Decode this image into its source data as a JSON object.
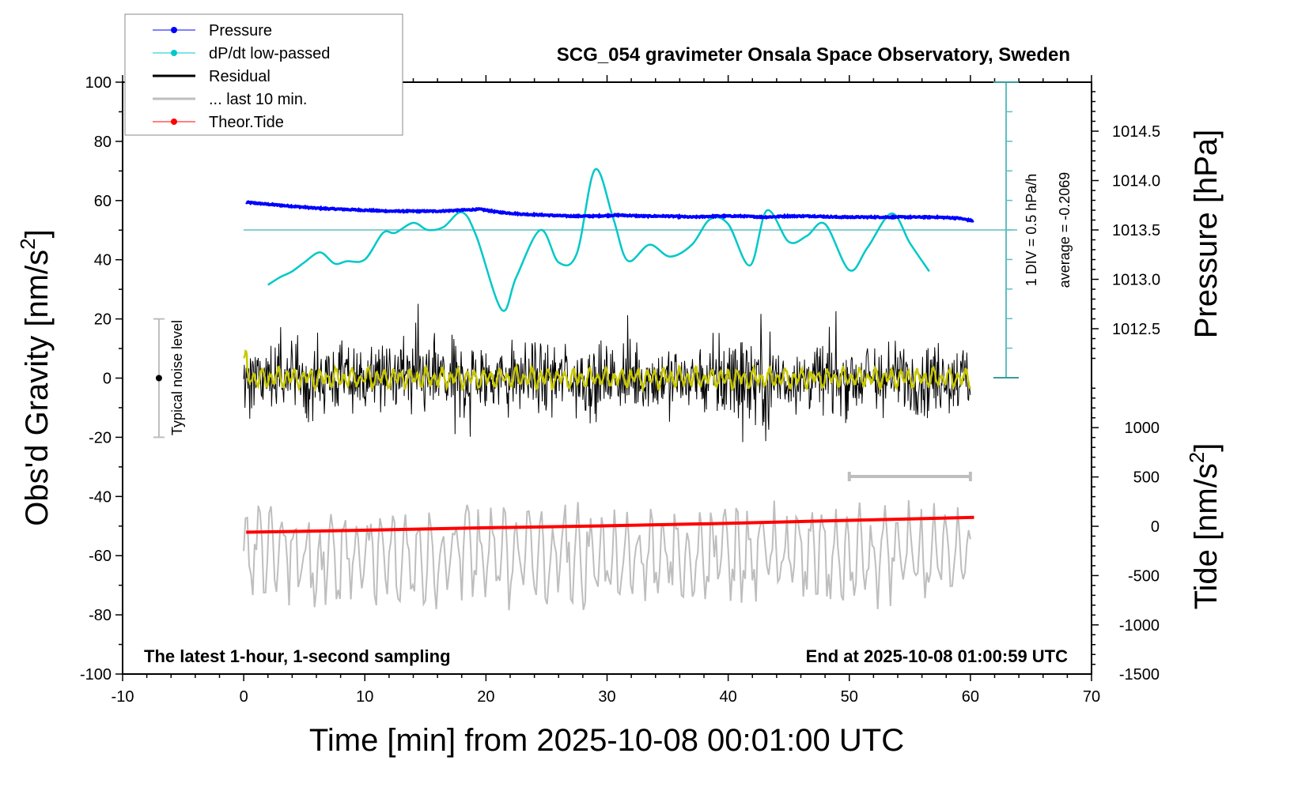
{
  "chart_data": {
    "type": "line",
    "title": "SCG_054 gravimeter Onsala Space Observatory, Sweden",
    "xlabel": "Time [min] from 2025-10-08 00:01:00 UTC",
    "ylabel_left": "Obs'd Gravity [nm/s",
    "ylabel_left_sup": "2",
    "ylabel_left_end": "]",
    "ylabel_right_pressure": "Pressure [hPa]",
    "ylabel_right_tide": "Tide [nm/s",
    "ylabel_right_tide_sup": "2",
    "ylabel_right_tide_end": "]",
    "xlim": [
      -10,
      70
    ],
    "ylim_left": [
      -100,
      100
    ],
    "ylim_pressure": [
      1012.0,
      1015.0
    ],
    "ylim_tide": [
      -1500,
      1500
    ],
    "x_ticks": [
      "-10",
      "0",
      "10",
      "20",
      "30",
      "40",
      "50",
      "60",
      "70"
    ],
    "x_tick_values": [
      -10,
      0,
      10,
      20,
      30,
      40,
      50,
      60,
      70
    ],
    "y_left_ticks": [
      "100",
      "80",
      "60",
      "40",
      "20",
      "0",
      "-20",
      "-40",
      "-60",
      "-80",
      "-100"
    ],
    "y_left_tick_values": [
      100,
      80,
      60,
      40,
      20,
      0,
      -20,
      -40,
      -60,
      -80,
      -100
    ],
    "pressure_ticks": [
      "1014.5",
      "1014.0",
      "1013.5",
      "1013.0",
      "1012.5"
    ],
    "pressure_tick_values": [
      1014.5,
      1014.0,
      1013.5,
      1013.0,
      1012.5
    ],
    "tide_ticks": [
      "1000",
      "500",
      "0",
      "-500",
      "-1000",
      "-1500"
    ],
    "tide_tick_values": [
      1000,
      500,
      0,
      -500,
      -1000,
      -1500
    ],
    "legend": {
      "placement": "top-left",
      "entries": [
        {
          "label": "Pressure",
          "color": "#0000ff",
          "marker": "dot"
        },
        {
          "label": "dP/dt low-passed",
          "color": "#00c8c8",
          "marker": "dot"
        },
        {
          "label": "Residual",
          "color": "#000000",
          "marker": "line"
        },
        {
          "label": "... last 10 min.",
          "color": "#bebebe",
          "marker": "line"
        },
        {
          "label": "Theor.Tide",
          "color": "#ff0000",
          "marker": "dot"
        }
      ]
    },
    "annotations": {
      "noise_label": "Typical noise level",
      "noise_range": [
        -20,
        20
      ],
      "noise_x": -7,
      "dpdt_scale": "1 DIV = 0.5 hPa/h",
      "dpdt_average": "average = -0.2069",
      "bottom_left": "The latest 1-hour, 1-second sampling",
      "bottom_right": "End at 2025-10-08 01:00:59 UTC",
      "last10_range_min": [
        50,
        60
      ]
    },
    "series": [
      {
        "name": "Pressure",
        "axis": "pressure",
        "color": "#0000ff",
        "x": [
          0.2,
          2,
          4,
          6,
          8,
          10,
          12,
          14,
          16,
          18,
          19.5,
          21,
          23,
          25,
          27,
          29,
          31,
          33,
          35,
          37,
          39,
          41,
          43,
          45,
          47,
          49,
          51,
          53,
          55,
          57,
          59,
          60.3
        ],
        "values": [
          1013.78,
          1013.76,
          1013.74,
          1013.72,
          1013.71,
          1013.7,
          1013.69,
          1013.69,
          1013.69,
          1013.7,
          1013.71,
          1013.68,
          1013.66,
          1013.65,
          1013.64,
          1013.64,
          1013.65,
          1013.64,
          1013.64,
          1013.63,
          1013.64,
          1013.64,
          1013.63,
          1013.64,
          1013.64,
          1013.63,
          1013.63,
          1013.63,
          1013.63,
          1013.63,
          1013.62,
          1013.59
        ]
      },
      {
        "name": "dP/dt low-passed",
        "axis": "dpdt",
        "unit": "hPa/h",
        "color": "#00c8c8",
        "x": [
          2,
          3,
          4,
          5,
          6.3,
          7.5,
          8.5,
          10,
          11.5,
          12.5,
          14,
          15.2,
          16.5,
          18,
          19.2,
          21.3,
          22.5,
          24.5,
          26,
          27.5,
          29,
          30.5,
          31.7,
          33.5,
          35.2,
          37,
          38.5,
          40,
          41.8,
          43.2,
          45,
          46.5,
          48,
          50,
          51.5,
          53.5,
          55,
          56.6
        ],
        "values": [
          -0.93,
          -0.8,
          -0.7,
          -0.55,
          -0.38,
          -0.57,
          -0.53,
          -0.5,
          -0.05,
          -0.05,
          0.12,
          0.0,
          0.05,
          0.3,
          -0.1,
          -1.35,
          -0.8,
          0.0,
          -0.55,
          -0.4,
          1.02,
          0.2,
          -0.52,
          -0.25,
          -0.45,
          -0.25,
          0.18,
          0.1,
          -0.6,
          0.33,
          -0.2,
          -0.1,
          0.1,
          -0.68,
          -0.3,
          0.28,
          -0.22,
          -0.7
        ]
      },
      {
        "name": "Residual",
        "axis": "left",
        "color": "#000000",
        "x_range": [
          0,
          60
        ],
        "amplitude_typical": 20,
        "values_summary": {
          "min": -38,
          "max": 40,
          "mean": 0
        }
      },
      {
        "name": "Residual low-passed",
        "axis": "left",
        "color": "#c8c800",
        "x_range": [
          0,
          60
        ],
        "amplitude_typical": 4,
        "values_summary": {
          "min": -6,
          "max": 9,
          "mean": 0
        }
      },
      {
        "name": "... last 10 min.",
        "axis": "left",
        "color": "#bebebe",
        "x_range": [
          0,
          60
        ],
        "offset": -60,
        "values_summary": {
          "min": -87,
          "max": -32,
          "mean": -60
        }
      },
      {
        "name": "Theor.Tide",
        "axis": "tide",
        "color": "#ff0000",
        "x": [
          0.2,
          10,
          20,
          30,
          40,
          50,
          60.3
        ],
        "values": [
          -60,
          -40,
          -15,
          5,
          30,
          60,
          90
        ]
      }
    ]
  }
}
